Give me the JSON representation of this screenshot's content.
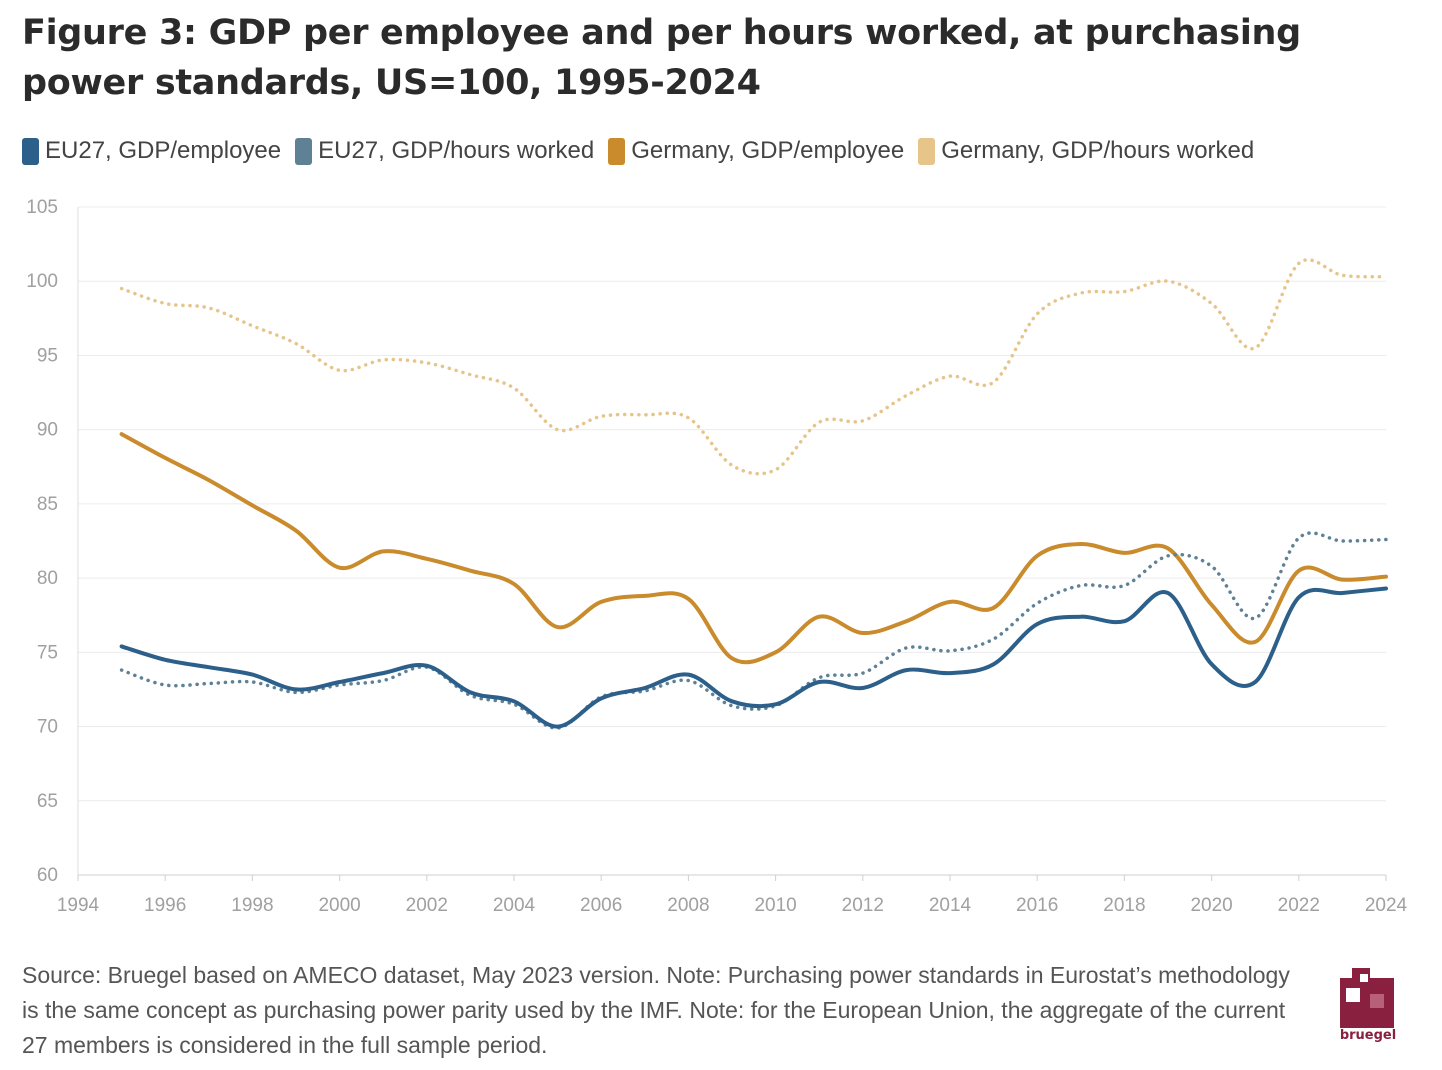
{
  "title": "Figure 3: GDP per employee and per hours worked, at purchasing power standards, US=100, 1995-2024",
  "source": "Source: Bruegel based on AMECO dataset, May 2023 version. Note: Purchasing power standards in Eurostat’s methodology is the same concept as purchasing power parity used by the IMF. Note: for the European Union, the aggregate of the current 27 members is considered in the full sample period.",
  "logo": {
    "text": "bruegel",
    "color": "#8a2040"
  },
  "chart_data": {
    "type": "line",
    "title": "Figure 3: GDP per employee and per hours worked, at purchasing power standards, US=100, 1995-2024",
    "xlabel": "",
    "ylabel": "",
    "xlim": [
      1994,
      2024
    ],
    "ylim": [
      60,
      105
    ],
    "xticks": [
      "1994",
      "1996",
      "1998",
      "2000",
      "2002",
      "2004",
      "2006",
      "2008",
      "2010",
      "2012",
      "2014",
      "2016",
      "2018",
      "2020",
      "2022",
      "2024"
    ],
    "yticks": [
      "60",
      "65",
      "70",
      "75",
      "80",
      "85",
      "90",
      "95",
      "100",
      "105"
    ],
    "grid": true,
    "legend_position": "top-left",
    "x": [
      1995,
      1996,
      1997,
      1998,
      1999,
      2000,
      2001,
      2002,
      2003,
      2004,
      2005,
      2006,
      2007,
      2008,
      2009,
      2010,
      2011,
      2012,
      2013,
      2014,
      2015,
      2016,
      2017,
      2018,
      2019,
      2020,
      2021,
      2022,
      2023,
      2024
    ],
    "series": [
      {
        "name": "EU27, GDP/employee",
        "color": "#2c5f8a",
        "style": "solid",
        "values": [
          75.4,
          74.5,
          74.0,
          73.5,
          72.5,
          73.0,
          73.6,
          74.1,
          72.3,
          71.7,
          70.0,
          71.9,
          72.6,
          73.5,
          71.7,
          71.5,
          73.0,
          72.6,
          73.8,
          73.6,
          74.2,
          76.9,
          77.4,
          77.1,
          79.0,
          74.2,
          73.0,
          78.7,
          79.0,
          79.3
        ]
      },
      {
        "name": "EU27, GDP/hours worked",
        "color": "#5e8196",
        "style": "dotted",
        "values": [
          73.8,
          72.8,
          72.9,
          73.0,
          72.3,
          72.8,
          73.1,
          74.0,
          72.1,
          71.5,
          69.9,
          72.0,
          72.4,
          73.1,
          71.4,
          71.4,
          73.3,
          73.6,
          75.3,
          75.1,
          75.9,
          78.3,
          79.5,
          79.5,
          81.5,
          80.8,
          77.3,
          82.7,
          82.5,
          82.6
        ]
      },
      {
        "name": "Germany, GDP/employee",
        "color": "#c98b2c",
        "style": "solid",
        "values": [
          89.7,
          88.1,
          86.6,
          84.9,
          83.2,
          80.7,
          81.8,
          81.3,
          80.5,
          79.6,
          76.7,
          78.4,
          78.8,
          78.6,
          74.6,
          75.0,
          77.4,
          76.3,
          77.1,
          78.4,
          78.0,
          81.5,
          82.3,
          81.7,
          82.0,
          78.2,
          75.7,
          80.5,
          79.9,
          80.1
        ]
      },
      {
        "name": "Germany, GDP/hours worked",
        "color": "#e6c48a",
        "style": "dotted",
        "values": [
          99.5,
          98.5,
          98.2,
          97.0,
          95.8,
          94.0,
          94.7,
          94.5,
          93.7,
          92.8,
          90.0,
          90.9,
          91.0,
          90.8,
          87.6,
          87.3,
          90.5,
          90.6,
          92.3,
          93.6,
          93.2,
          97.8,
          99.2,
          99.3,
          100.0,
          98.5,
          95.5,
          101.2,
          100.4,
          100.3
        ]
      }
    ]
  }
}
